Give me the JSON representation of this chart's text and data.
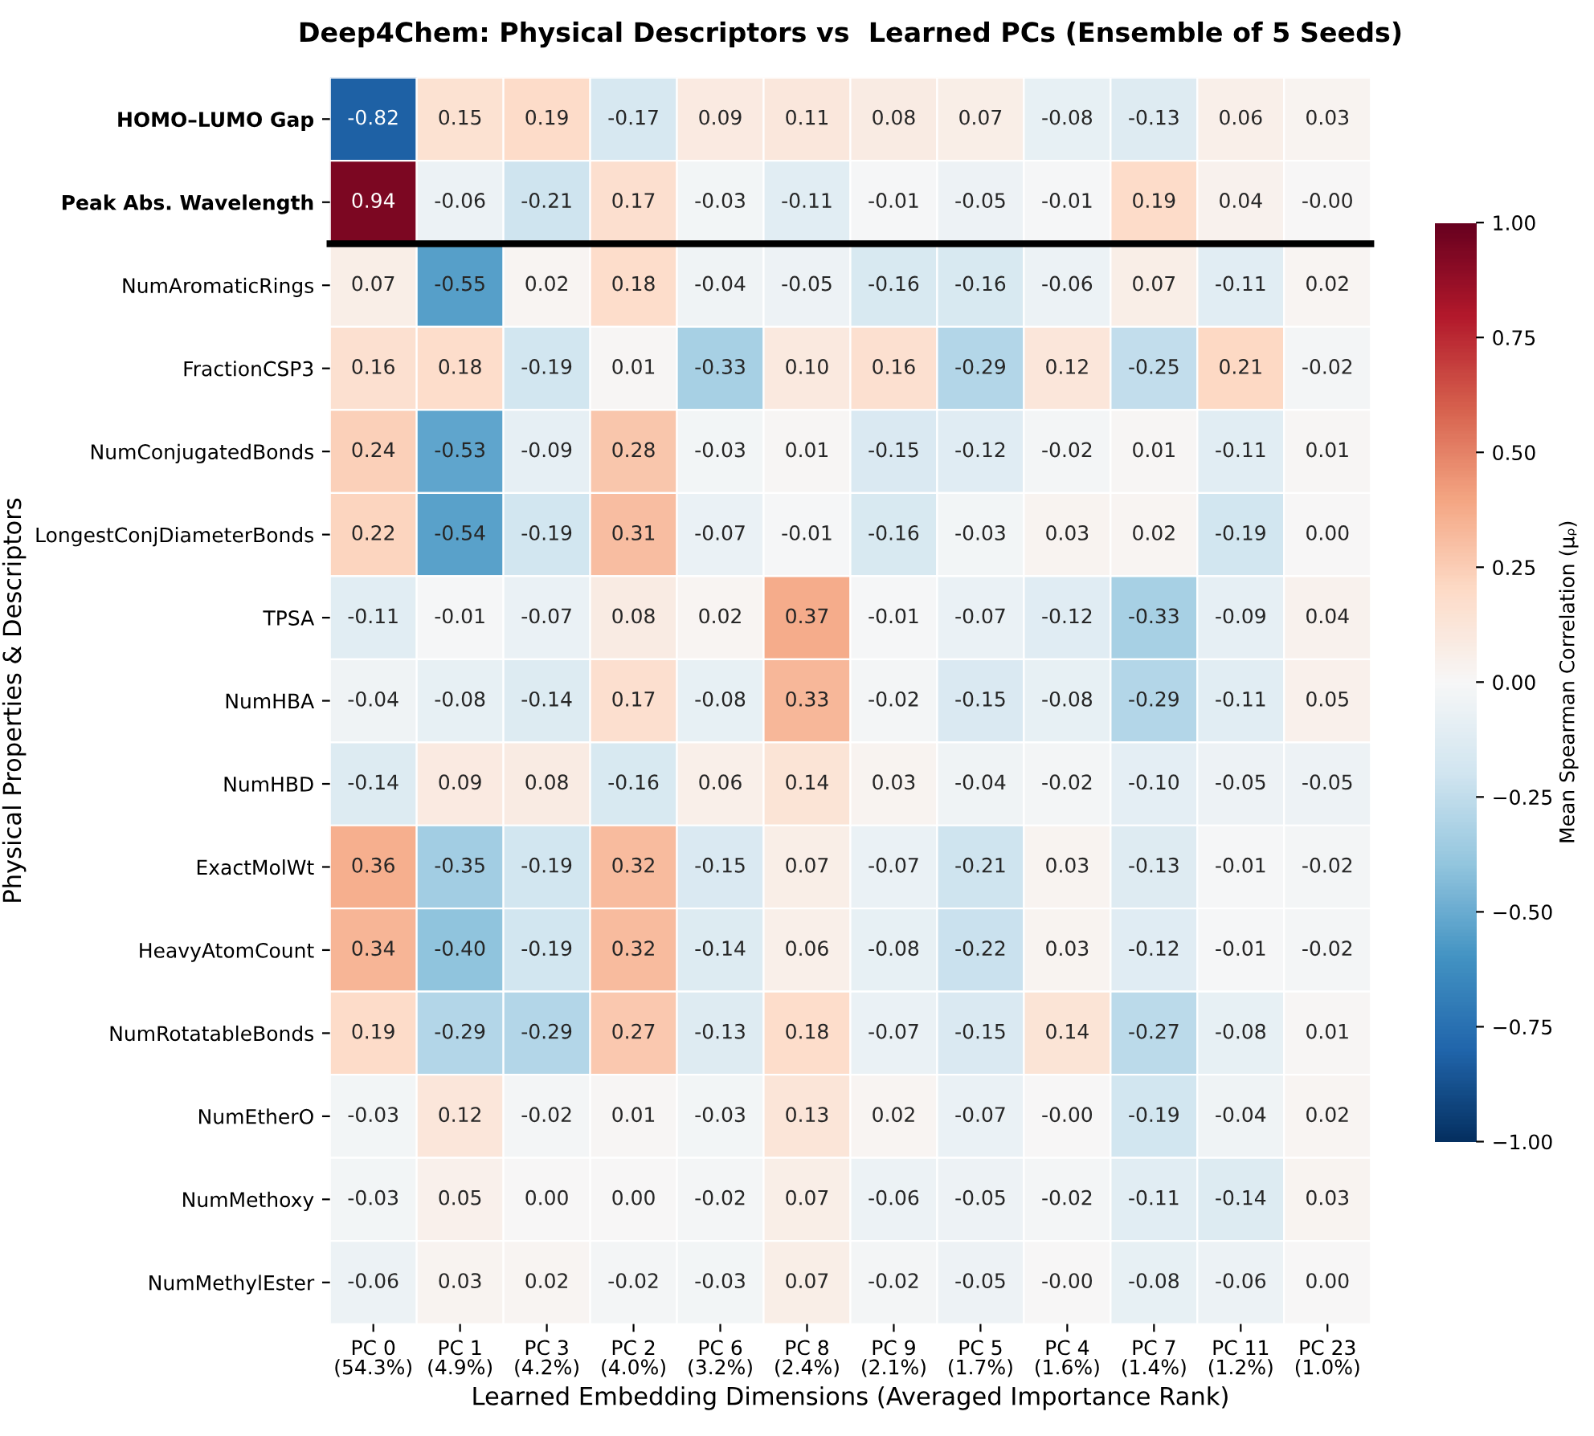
{
  "chart_data": {
    "type": "heatmap",
    "title": "Deep4Chem: Physical Descriptors vs  Learned PCs (Ensemble of 5 Seeds)",
    "xlabel": "Learned Embedding Dimensions (Averaged Importance Rank)",
    "ylabel": "Physical Properties & Descriptors",
    "clabel": "Mean Spearman Correlation (μᵨ)",
    "categories": [
      "PC 0\n(54.3%)",
      "PC 1\n(4.9%)",
      "PC 3\n(4.2%)",
      "PC 2\n(4.0%)",
      "PC 6\n(3.2%)",
      "PC 8\n(2.4%)",
      "PC 9\n(2.1%)",
      "PC 5\n(1.7%)",
      "PC 4\n(1.6%)",
      "PC 7\n(1.4%)",
      "PC 11\n(1.2%)",
      "PC 23\n(1.0%)"
    ],
    "y_categories": [
      "HOMO–LUMO Gap",
      "Peak Abs. Wavelength",
      "NumAromaticRings",
      "FractionCSP3",
      "NumConjugatedBonds",
      "LongestConjDiameterBonds",
      "TPSA",
      "NumHBA",
      "NumHBD",
      "ExactMolWt",
      "HeavyAtomCount",
      "NumRotatableBonds",
      "NumEtherO",
      "NumMethoxy",
      "NumMethylEster"
    ],
    "cells": [
      [
        -0.82,
        0.15,
        0.19,
        -0.17,
        0.09,
        0.11,
        0.08,
        0.07,
        -0.08,
        -0.13,
        0.06,
        0.03
      ],
      [
        0.94,
        -0.06,
        -0.21,
        0.17,
        -0.03,
        -0.11,
        -0.01,
        -0.05,
        -0.01,
        0.19,
        0.04,
        -0.0
      ],
      [
        0.07,
        -0.55,
        0.02,
        0.18,
        -0.04,
        -0.05,
        -0.16,
        -0.16,
        -0.06,
        0.07,
        -0.11,
        0.02
      ],
      [
        0.16,
        0.18,
        -0.19,
        0.01,
        -0.33,
        0.1,
        0.16,
        -0.29,
        0.12,
        -0.25,
        0.21,
        -0.02
      ],
      [
        0.24,
        -0.53,
        -0.09,
        0.28,
        -0.03,
        0.01,
        -0.15,
        -0.12,
        -0.02,
        0.01,
        -0.11,
        0.01
      ],
      [
        0.22,
        -0.54,
        -0.19,
        0.31,
        -0.07,
        -0.01,
        -0.16,
        -0.03,
        0.03,
        0.02,
        -0.19,
        0.0
      ],
      [
        -0.11,
        -0.01,
        -0.07,
        0.08,
        0.02,
        0.37,
        -0.01,
        -0.07,
        -0.12,
        -0.33,
        -0.09,
        0.04
      ],
      [
        -0.04,
        -0.08,
        -0.14,
        0.17,
        -0.08,
        0.33,
        -0.02,
        -0.15,
        -0.08,
        -0.29,
        -0.11,
        0.05
      ],
      [
        -0.14,
        0.09,
        0.08,
        -0.16,
        0.06,
        0.14,
        0.03,
        -0.04,
        -0.02,
        -0.1,
        -0.05,
        -0.05
      ],
      [
        0.36,
        -0.35,
        -0.19,
        0.32,
        -0.15,
        0.07,
        -0.07,
        -0.21,
        0.03,
        -0.13,
        -0.01,
        -0.02
      ],
      [
        0.34,
        -0.4,
        -0.19,
        0.32,
        -0.14,
        0.06,
        -0.08,
        -0.22,
        0.03,
        -0.12,
        -0.01,
        -0.02
      ],
      [
        0.19,
        -0.29,
        -0.29,
        0.27,
        -0.13,
        0.18,
        -0.07,
        -0.15,
        0.14,
        -0.27,
        -0.08,
        0.01
      ],
      [
        -0.03,
        0.12,
        -0.02,
        0.01,
        -0.03,
        0.13,
        0.02,
        -0.07,
        -0.0,
        -0.19,
        -0.04,
        0.02
      ],
      [
        -0.03,
        0.05,
        0.0,
        0.0,
        -0.02,
        0.07,
        -0.06,
        -0.05,
        -0.02,
        -0.11,
        -0.14,
        0.03
      ],
      [
        -0.06,
        0.03,
        0.02,
        -0.02,
        -0.03,
        0.07,
        -0.02,
        -0.05,
        -0.0,
        -0.08,
        -0.06,
        0.0
      ]
    ],
    "cell_labels": [
      [
        "-0.82",
        "0.15",
        "0.19",
        "-0.17",
        "0.09",
        "0.11",
        "0.08",
        "0.07",
        "-0.08",
        "-0.13",
        "0.06",
        "0.03"
      ],
      [
        "0.94",
        "-0.06",
        "-0.21",
        "0.17",
        "-0.03",
        "-0.11",
        "-0.01",
        "-0.05",
        "-0.01",
        "0.19",
        "0.04",
        "-0.00"
      ],
      [
        "0.07",
        "-0.55",
        "0.02",
        "0.18",
        "-0.04",
        "-0.05",
        "-0.16",
        "-0.16",
        "-0.06",
        "0.07",
        "-0.11",
        "0.02"
      ],
      [
        "0.16",
        "0.18",
        "-0.19",
        "0.01",
        "-0.33",
        "0.10",
        "0.16",
        "-0.29",
        "0.12",
        "-0.25",
        "0.21",
        "-0.02"
      ],
      [
        "0.24",
        "-0.53",
        "-0.09",
        "0.28",
        "-0.03",
        "0.01",
        "-0.15",
        "-0.12",
        "-0.02",
        "0.01",
        "-0.11",
        "0.01"
      ],
      [
        "0.22",
        "-0.54",
        "-0.19",
        "0.31",
        "-0.07",
        "-0.01",
        "-0.16",
        "-0.03",
        "0.03",
        "0.02",
        "-0.19",
        "0.00"
      ],
      [
        "-0.11",
        "-0.01",
        "-0.07",
        "0.08",
        "0.02",
        "0.37",
        "-0.01",
        "-0.07",
        "-0.12",
        "-0.33",
        "-0.09",
        "0.04"
      ],
      [
        "-0.04",
        "-0.08",
        "-0.14",
        "0.17",
        "-0.08",
        "0.33",
        "-0.02",
        "-0.15",
        "-0.08",
        "-0.29",
        "-0.11",
        "0.05"
      ],
      [
        "-0.14",
        "0.09",
        "0.08",
        "-0.16",
        "0.06",
        "0.14",
        "0.03",
        "-0.04",
        "-0.02",
        "-0.10",
        "-0.05",
        "-0.05"
      ],
      [
        "0.36",
        "-0.35",
        "-0.19",
        "0.32",
        "-0.15",
        "0.07",
        "-0.07",
        "-0.21",
        "0.03",
        "-0.13",
        "-0.01",
        "-0.02"
      ],
      [
        "0.34",
        "-0.40",
        "-0.19",
        "0.32",
        "-0.14",
        "0.06",
        "-0.08",
        "-0.22",
        "0.03",
        "-0.12",
        "-0.01",
        "-0.02"
      ],
      [
        "0.19",
        "-0.29",
        "-0.29",
        "0.27",
        "-0.13",
        "0.18",
        "-0.07",
        "-0.15",
        "0.14",
        "-0.27",
        "-0.08",
        "0.01"
      ],
      [
        "-0.03",
        "0.12",
        "-0.02",
        "0.01",
        "-0.03",
        "0.13",
        "0.02",
        "-0.07",
        "-0.00",
        "-0.19",
        "-0.04",
        "0.02"
      ],
      [
        "-0.03",
        "0.05",
        "0.00",
        "0.00",
        "-0.02",
        "0.07",
        "-0.06",
        "-0.05",
        "-0.02",
        "-0.11",
        "-0.14",
        "0.03"
      ],
      [
        "-0.06",
        "0.03",
        "0.02",
        "-0.02",
        "-0.03",
        "0.07",
        "-0.02",
        "-0.05",
        "-0.00",
        "-0.08",
        "-0.06",
        "0.00"
      ]
    ],
    "clim": [
      -1,
      1
    ],
    "cticks": [
      {
        "value": -1,
        "label": "−1.00"
      },
      {
        "value": -0.75,
        "label": "−0.75"
      },
      {
        "value": -0.5,
        "label": "−0.50"
      },
      {
        "value": -0.25,
        "label": "−0.25"
      },
      {
        "value": 0,
        "label": "0.00"
      },
      {
        "value": 0.25,
        "label": "0.25"
      },
      {
        "value": 0.5,
        "label": "0.50"
      },
      {
        "value": 0.75,
        "label": "0.75"
      },
      {
        "value": 1,
        "label": "1.00"
      }
    ]
  }
}
